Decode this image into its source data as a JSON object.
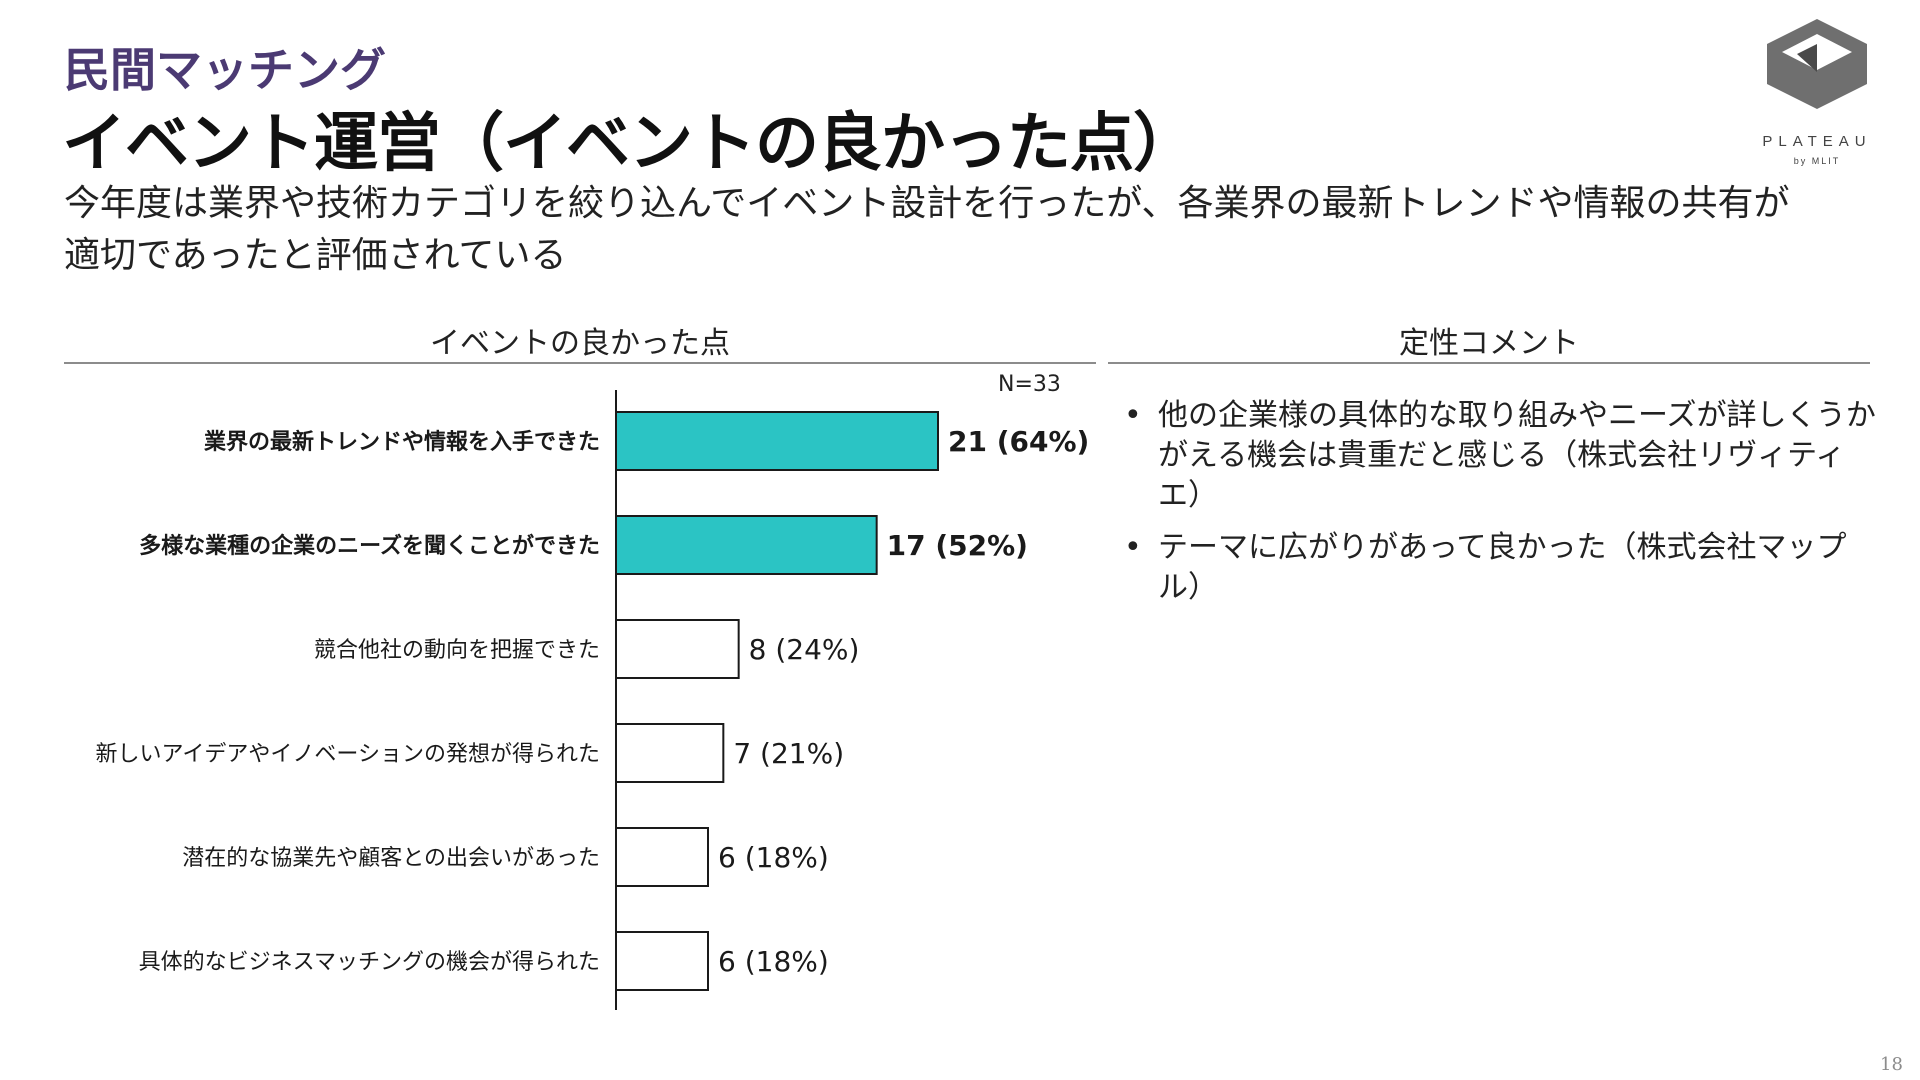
{
  "header": {
    "section_label": "民間マッチング",
    "title": "イベント運営（イベントの良かった点）",
    "subtitle": "今年度は業界や技術カテゴリを絞り込んでイベント設計を行ったが、各業界の最新トレンドや情報の共有が適切であったと評価されている"
  },
  "logo": {
    "icon": "plateau-cube-logo-icon",
    "wordmark": "PLATEAU",
    "byline": "by MLIT"
  },
  "left_panel": {
    "header": "イベントの良かった点",
    "sample_size": "N=33"
  },
  "right_panel": {
    "header": "定性コメント",
    "comments": [
      "他の企業様の具体的な取り組みやニーズが詳しくうかがえる機会は貴重だと感じる（株式会社リヴィティエ）",
      "テーマに広がりがあって良かった（株式会社マップル）"
    ]
  },
  "chart_data": {
    "type": "bar",
    "orientation": "horizontal",
    "categories": [
      "業界の最新トレンドや情報を入手できた",
      "多様な業種の企業のニーズを聞くことができた",
      "競合他社の動向を把握できた",
      "新しいアイデアやイノベーションの発想が得られた",
      "潜在的な協業先や顧客との出会いがあった",
      "具体的なビジネスマッチングの機会が得られた"
    ],
    "values": [
      21,
      17,
      8,
      7,
      6,
      6
    ],
    "data_labels": [
      "21 (64%)",
      "17 (52%)",
      "8 (24%)",
      "7 (21%)",
      "6 (18%)",
      "6 (18%)"
    ],
    "highlighted": [
      true,
      true,
      false,
      false,
      false,
      false
    ],
    "colors": {
      "highlight": "#2bc4c4",
      "default": "#ffffff",
      "outline": "#1a1a1a"
    },
    "xlim": [
      0,
      21
    ],
    "grid": false
  },
  "page_number": "18"
}
